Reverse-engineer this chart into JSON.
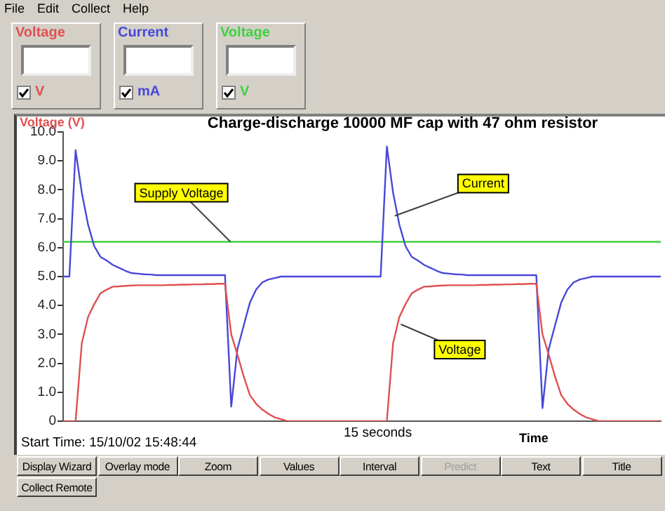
{
  "chart_data": {
    "type": "line",
    "title": "Charge-discharge 10000 MF cap with 47 ohm resistor",
    "ylabel": "Voltage (V)",
    "xlabel": "Time",
    "categories": [
      null,
      null,
      null,
      null,
      null,
      null,
      null,
      null,
      null,
      null,
      null,
      null,
      null,
      null,
      null,
      null,
      null,
      null,
      null,
      null,
      null,
      null,
      null,
      null,
      null,
      null,
      null,
      null,
      null,
      null,
      null,
      null,
      null,
      null,
      null,
      null,
      null,
      null,
      null,
      null,
      null,
      null,
      null,
      null,
      null,
      null,
      null,
      null,
      null,
      null,
      null,
      null,
      null,
      null,
      null,
      null,
      null,
      null,
      null,
      null,
      null,
      null,
      null,
      null,
      null,
      null,
      null,
      null,
      null,
      null,
      null,
      null,
      null,
      null,
      null,
      null,
      null,
      null,
      null,
      null,
      null,
      null,
      null,
      null,
      null,
      null,
      null,
      null,
      null,
      null,
      null,
      null,
      null,
      null,
      null,
      null,
      null
    ],
    "ylim": [
      0,
      10
    ],
    "yticks": [
      {
        "value": 0,
        "label": "0"
      },
      {
        "value": 1,
        "label": "1.0"
      },
      {
        "value": 2,
        "label": "2.0"
      },
      {
        "value": 3,
        "label": "3.0"
      },
      {
        "value": 4,
        "label": "4.0"
      },
      {
        "value": 5,
        "label": "5.0"
      },
      {
        "value": 6,
        "label": "6.0"
      },
      {
        "value": 7,
        "label": "7.0"
      },
      {
        "value": 8,
        "label": "8.0"
      },
      {
        "value": 9,
        "label": "9.0"
      },
      {
        "value": 10,
        "label": "10.0"
      }
    ],
    "grid": false,
    "legend": "top left",
    "marker": "none",
    "line_style": "solid",
    "series": [
      {
        "name": "Voltage",
        "color": "#e05050",
        "values": [
          0,
          0,
          0,
          2.7,
          3.6,
          4.05,
          4.42,
          4.55,
          4.65,
          4.66,
          4.68,
          4.69,
          4.7,
          4.7,
          4.7,
          4.7,
          4.7,
          4.71,
          4.71,
          4.72,
          4.72,
          4.73,
          4.73,
          4.74,
          4.74,
          4.75,
          4.75,
          3.0,
          2.3,
          1.55,
          0.9,
          0.6,
          0.4,
          0.25,
          0.13,
          0.07,
          0,
          0,
          0,
          0,
          0,
          0,
          0,
          0,
          0,
          0,
          0,
          0,
          0,
          0,
          0,
          0,
          0,
          2.7,
          3.6,
          4.05,
          4.42,
          4.55,
          4.65,
          4.66,
          4.68,
          4.69,
          4.7,
          4.7,
          4.7,
          4.7,
          4.7,
          4.71,
          4.71,
          4.72,
          4.72,
          4.73,
          4.73,
          4.74,
          4.74,
          4.75,
          4.75,
          3.0,
          2.3,
          1.55,
          0.9,
          0.6,
          0.4,
          0.25,
          0.13,
          0.07,
          0,
          0,
          0,
          0,
          0,
          0,
          0,
          0,
          0,
          0,
          0
        ]
      },
      {
        "name": "Current",
        "color": "#4848d8",
        "values": [
          5.0,
          5.0,
          9.37,
          7.9,
          6.8,
          6.05,
          5.68,
          5.55,
          5.4,
          5.3,
          5.2,
          5.12,
          5.1,
          5.08,
          5.07,
          5.05,
          5.05,
          5.05,
          5.05,
          5.05,
          5.05,
          5.05,
          5.05,
          5.05,
          5.05,
          5.05,
          5.05,
          0.5,
          2.5,
          3.3,
          4.1,
          4.55,
          4.8,
          4.9,
          4.95,
          5.0,
          5.0,
          5.0,
          5.0,
          5.0,
          5.0,
          5.0,
          5.0,
          5.0,
          5.0,
          5.0,
          5.0,
          5.0,
          5.0,
          5.0,
          5.0,
          5.0,
          9.5,
          7.9,
          6.8,
          6.05,
          5.68,
          5.55,
          5.4,
          5.3,
          5.2,
          5.12,
          5.1,
          5.08,
          5.07,
          5.05,
          5.05,
          5.05,
          5.05,
          5.05,
          5.05,
          5.05,
          5.05,
          5.05,
          5.05,
          5.05,
          5.05,
          0.45,
          2.5,
          3.3,
          4.1,
          4.55,
          4.8,
          4.9,
          4.95,
          5.0,
          5.0,
          5.0,
          5.0,
          5.0,
          5.0,
          5.0,
          5.0,
          5.0,
          5.0,
          5.0,
          5.0
        ]
      },
      {
        "name": "Voltage",
        "color": "#40d040",
        "values": [
          6.2,
          6.2,
          6.2,
          6.2,
          6.2,
          6.2,
          6.2,
          6.2,
          6.2,
          6.2,
          6.2,
          6.2,
          6.2,
          6.2,
          6.2,
          6.2,
          6.2,
          6.2,
          6.2,
          6.2,
          6.2,
          6.2,
          6.2,
          6.2,
          6.2,
          6.2,
          6.2,
          6.2,
          6.2,
          6.2,
          6.2,
          6.2,
          6.2,
          6.2,
          6.2,
          6.2,
          6.2,
          6.2,
          6.2,
          6.2,
          6.2,
          6.2,
          6.2,
          6.2,
          6.2,
          6.2,
          6.2,
          6.2,
          6.2,
          6.2,
          6.2,
          6.2,
          6.2,
          6.2,
          6.2,
          6.2,
          6.2,
          6.2,
          6.2,
          6.2,
          6.2,
          6.2,
          6.2,
          6.2,
          6.2,
          6.2,
          6.2,
          6.2,
          6.2,
          6.2,
          6.2,
          6.2,
          6.2,
          6.2,
          6.2,
          6.2,
          6.2,
          6.2,
          6.2,
          6.2,
          6.2,
          6.2,
          6.2,
          6.2,
          6.2,
          6.2,
          6.2,
          6.2,
          6.2,
          6.2,
          6.2,
          6.2,
          6.2,
          6.2,
          6.2,
          6.2,
          6.2
        ]
      }
    ],
    "annotations": [
      "File",
      "Edit",
      "Collect",
      "Help",
      "V",
      "mA",
      "V",
      "15 seconds",
      "Start Time: 15/10/02 15:48:44",
      "Display Wizard",
      "Overlay mode",
      "Zoom",
      "Values",
      "Interval",
      "Predict",
      "Text",
      "Title",
      "Collect Remote",
      "Supply Voltage",
      "Current",
      "Voltage"
    ]
  }
}
